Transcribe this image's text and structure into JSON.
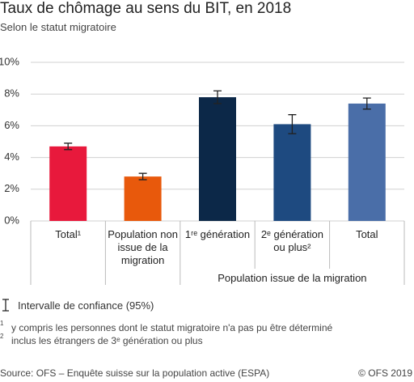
{
  "chart_data": {
    "type": "bar",
    "title": "Taux de chômage au sens du BIT, en 2018",
    "subtitle": "Selon le statut migratoire",
    "categories": [
      "Total¹",
      "Population non issue de la migration",
      "1ʳᵉ génération",
      "2ᵉ génération ou plus²",
      "Total"
    ],
    "values": [
      4.7,
      2.8,
      7.8,
      6.1,
      7.4
    ],
    "errors": [
      0.2,
      0.2,
      0.4,
      0.6,
      0.35
    ],
    "colors": [
      "#e8193c",
      "#e8590c",
      "#0c2848",
      "#1e4a80",
      "#4a6ea8"
    ],
    "group_label": "Population issue de la migration",
    "ylim": [
      0,
      10
    ],
    "yticks": [
      {
        "value": 0,
        "label": "0%"
      },
      {
        "value": 2,
        "label": "2%"
      },
      {
        "value": 4,
        "label": "4%"
      },
      {
        "value": 6,
        "label": "6%"
      },
      {
        "value": 8,
        "label": "8%"
      },
      {
        "value": 10,
        "label": "10%"
      }
    ],
    "grid": true,
    "error_label": "Intervalle de confiance (95%)",
    "footnotes": [
      {
        "mark": "1",
        "text": "y compris les personnes dont le statut migratoire n'a pas pu être déterminé"
      },
      {
        "mark": "2",
        "text": "inclus les étrangers de 3ᵉ génération ou plus"
      }
    ],
    "source": "Source: OFS – Enquête suisse sur la population active (ESPA)",
    "copyright": "© OFS 2019"
  }
}
